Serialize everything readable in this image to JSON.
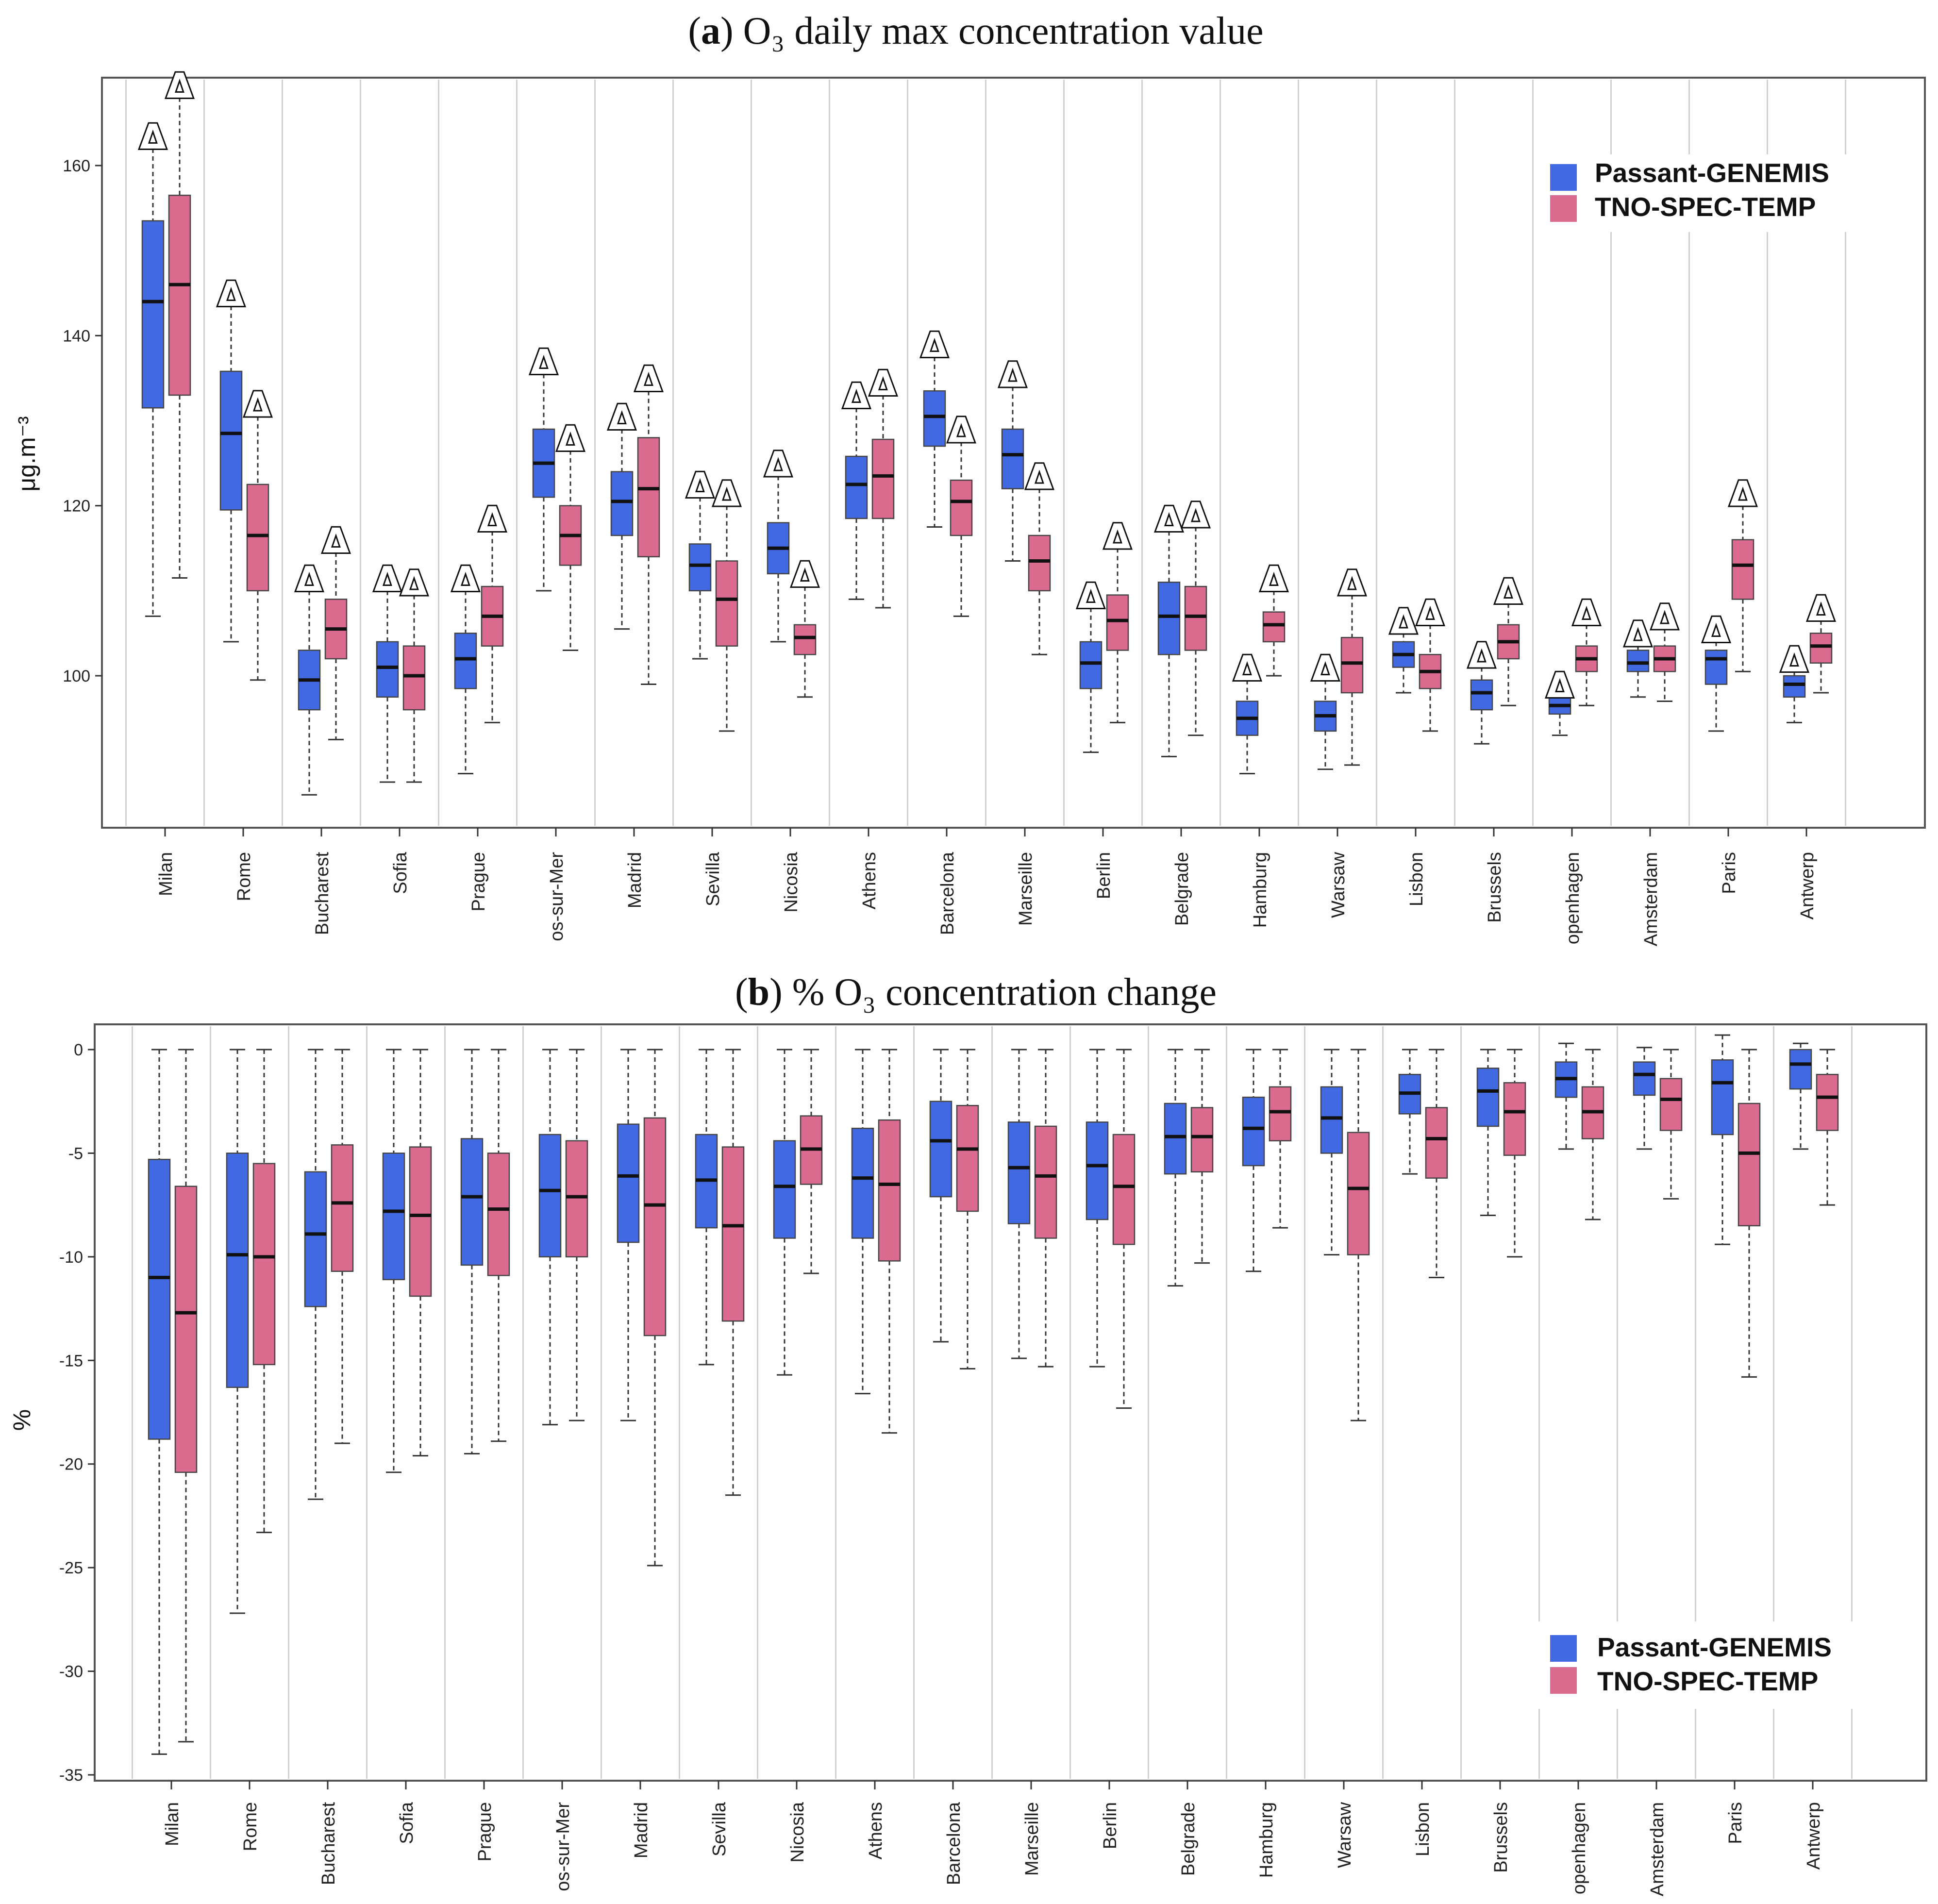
{
  "colors": {
    "blue": "#4169e1",
    "pink": "#db6a8f",
    "grid": "#d0d0d0"
  },
  "chart_data": [
    {
      "type": "boxplot",
      "panel": "a",
      "title_bold": "a",
      "title_rest": " O₃ daily max concentration value",
      "ylabel": "μg.m⁻³",
      "ylim": [
        80,
        170
      ],
      "yticks": [
        100,
        120,
        140,
        160
      ],
      "grid": true,
      "legend_position": "top-right",
      "legend": [
        "Passant-GENEMIS",
        "TNO-SPEC-TEMP"
      ],
      "marker_symbol": "Δ",
      "categories": [
        "Milan",
        "Rome",
        "Bucharest",
        "Sofia",
        "Prague",
        "os-sur-Mer",
        "Madrid",
        "Sevilla",
        "Nicosia",
        "Athens",
        "Barcelona",
        "Marseille",
        "Berlin",
        "Belgrade",
        "Hamburg",
        "Warsaw",
        "Lisbon",
        "Brussels",
        "openhagen",
        "Amsterdam",
        "Paris",
        "Antwerp"
      ],
      "series": [
        {
          "name": "Passant-GENEMIS",
          "boxes": [
            [
              107,
              131.5,
              144,
              153.5,
              162
            ],
            [
              104,
              119.5,
              128.5,
              135.8,
              143.5
            ],
            [
              86,
              96,
              99.5,
              103,
              110
            ],
            [
              87.5,
              97.5,
              101,
              104,
              110
            ],
            [
              88.5,
              98.5,
              102,
              105,
              110
            ],
            [
              110,
              121,
              125,
              129,
              135.5
            ],
            [
              105.5,
              116.5,
              120.5,
              124,
              129
            ],
            [
              102,
              110,
              113,
              115.5,
              121
            ],
            [
              104,
              112,
              115,
              118,
              123.5
            ],
            [
              109,
              118.5,
              122.5,
              125.8,
              131.5
            ],
            [
              117.5,
              127,
              130.5,
              133.5,
              137.5
            ],
            [
              113.5,
              122,
              126,
              129,
              134
            ],
            [
              91,
              98.5,
              101.5,
              104,
              108
            ],
            [
              90.5,
              102.5,
              107,
              111,
              117
            ],
            [
              88.5,
              93,
              95,
              97,
              99.5
            ],
            [
              89,
              93.5,
              95.3,
              97,
              99.5
            ],
            [
              98,
              101,
              102.5,
              104,
              105
            ],
            [
              92,
              96,
              98,
              99.5,
              101
            ],
            [
              93,
              95.5,
              96.5,
              97.5,
              97.5
            ],
            [
              97.5,
              100.5,
              101.5,
              103,
              103.5
            ],
            [
              93.5,
              99,
              102,
              103,
              104
            ],
            [
              94.5,
              97.5,
              99,
              100,
              100.5
            ]
          ]
        },
        {
          "name": "TNO-SPEC-TEMP",
          "boxes": [
            [
              111.5,
              133,
              146,
              156.5,
              168
            ],
            [
              99.5,
              110,
              116.5,
              122.5,
              130.5
            ],
            [
              92.5,
              102,
              105.5,
              109,
              114.5
            ],
            [
              87.5,
              96,
              100,
              103.5,
              109.5
            ],
            [
              94.5,
              103.5,
              107,
              110.5,
              117
            ],
            [
              103,
              113,
              116.5,
              120,
              126.5
            ],
            [
              99,
              114,
              122,
              128,
              133.5
            ],
            [
              93.5,
              103.5,
              109,
              113.5,
              120
            ],
            [
              97.5,
              102.5,
              104.5,
              106,
              110.5
            ],
            [
              108,
              118.5,
              123.5,
              127.8,
              133
            ],
            [
              107,
              116.5,
              120.5,
              123,
              127.5
            ],
            [
              102.5,
              110,
              113.5,
              116.5,
              122
            ],
            [
              94.5,
              103,
              106.5,
              109.5,
              115
            ],
            [
              93,
              103,
              107,
              110.5,
              117.5
            ],
            [
              100,
              104,
              106,
              107.5,
              110
            ],
            [
              89.5,
              98,
              101.5,
              104.5,
              109.5
            ],
            [
              93.5,
              98.5,
              100.5,
              102.5,
              106
            ],
            [
              96.5,
              102,
              104,
              106,
              108.5
            ],
            [
              96.5,
              100.5,
              102,
              103.5,
              106
            ],
            [
              97,
              100.5,
              102,
              103.5,
              105.5
            ],
            [
              100.5,
              109,
              113,
              116,
              120
            ],
            [
              98,
              101.5,
              103.5,
              105,
              106.5
            ]
          ]
        }
      ]
    },
    {
      "type": "boxplot",
      "panel": "b",
      "title_bold": "b",
      "title_rest": " % O₃ concentration change",
      "ylabel": "%",
      "ylim": [
        -35,
        2
      ],
      "yticks": [
        0,
        -5,
        -10,
        -15,
        -20,
        -25,
        -30,
        -35
      ],
      "grid": true,
      "legend_position": "bottom-right",
      "legend": [
        "Passant-GENEMIS",
        "TNO-SPEC-TEMP"
      ],
      "categories": [
        "Milan",
        "Rome",
        "Bucharest",
        "Sofia",
        "Prague",
        "os-sur-Mer",
        "Madrid",
        "Sevilla",
        "Nicosia",
        "Athens",
        "Barcelona",
        "Marseille",
        "Berlin",
        "Belgrade",
        "Hamburg",
        "Warsaw",
        "Lisbon",
        "Brussels",
        "openhagen",
        "Amsterdam",
        "Paris",
        "Antwerp"
      ],
      "series": [
        {
          "name": "Passant-GENEMIS",
          "boxes": [
            [
              -34,
              -18.8,
              -11,
              -5.3,
              0
            ],
            [
              -27.2,
              -16.3,
              -9.9,
              -5,
              0
            ],
            [
              -21.7,
              -12.4,
              -8.9,
              -5.9,
              0
            ],
            [
              -20.4,
              -11.1,
              -7.8,
              -5,
              0
            ],
            [
              -19.5,
              -10.4,
              -7.1,
              -4.3,
              0
            ],
            [
              -18.1,
              -10,
              -6.8,
              -4.1,
              0
            ],
            [
              -17.9,
              -9.3,
              -6.1,
              -3.6,
              0
            ],
            [
              -15.2,
              -8.6,
              -6.3,
              -4.1,
              0
            ],
            [
              -15.7,
              -9.1,
              -6.6,
              -4.4,
              0
            ],
            [
              -16.6,
              -9.1,
              -6.2,
              -3.8,
              0
            ],
            [
              -14.1,
              -7.1,
              -4.4,
              -2.5,
              0
            ],
            [
              -14.9,
              -8.4,
              -5.7,
              -3.5,
              0
            ],
            [
              -15.3,
              -8.2,
              -5.6,
              -3.5,
              0
            ],
            [
              -11.4,
              -6,
              -4.2,
              -2.6,
              0
            ],
            [
              -10.7,
              -5.6,
              -3.8,
              -2.3,
              0
            ],
            [
              -9.9,
              -5,
              -3.3,
              -1.8,
              0
            ],
            [
              -6,
              -3.1,
              -2.1,
              -1.2,
              0
            ],
            [
              -8,
              -3.7,
              -2,
              -0.9,
              0
            ],
            [
              -4.8,
              -2.3,
              -1.4,
              -0.6,
              0.3
            ],
            [
              -4.8,
              -2.2,
              -1.2,
              -0.6,
              0.1
            ],
            [
              -9.4,
              -4.1,
              -1.6,
              -0.5,
              0.7
            ],
            [
              -4.8,
              -1.9,
              -0.7,
              0,
              0.3
            ]
          ]
        },
        {
          "name": "TNO-SPEC-TEMP",
          "boxes": [
            [
              -33.4,
              -20.4,
              -12.7,
              -6.6,
              0
            ],
            [
              -23.3,
              -15.2,
              -10,
              -5.5,
              0
            ],
            [
              -19,
              -10.7,
              -7.4,
              -4.6,
              0
            ],
            [
              -19.6,
              -11.9,
              -8,
              -4.7,
              0
            ],
            [
              -18.9,
              -10.9,
              -7.7,
              -5,
              0
            ],
            [
              -17.9,
              -10,
              -7.1,
              -4.4,
              0
            ],
            [
              -24.9,
              -13.8,
              -7.5,
              -3.3,
              0
            ],
            [
              -21.5,
              -13.1,
              -8.5,
              -4.7,
              0
            ],
            [
              -10.8,
              -6.5,
              -4.8,
              -3.2,
              0
            ],
            [
              -18.5,
              -10.2,
              -6.5,
              -3.4,
              0
            ],
            [
              -15.4,
              -7.8,
              -4.8,
              -2.7,
              0
            ],
            [
              -15.3,
              -9.1,
              -6.1,
              -3.7,
              0
            ],
            [
              -17.3,
              -9.4,
              -6.6,
              -4.1,
              0
            ],
            [
              -10.3,
              -5.9,
              -4.2,
              -2.8,
              0
            ],
            [
              -8.6,
              -4.4,
              -3,
              -1.8,
              0
            ],
            [
              -17.9,
              -9.9,
              -6.7,
              -4,
              0
            ],
            [
              -11,
              -6.2,
              -4.3,
              -2.8,
              0
            ],
            [
              -10,
              -5.1,
              -3,
              -1.6,
              0
            ],
            [
              -8.2,
              -4.3,
              -3,
              -1.8,
              0
            ],
            [
              -7.2,
              -3.9,
              -2.4,
              -1.4,
              0
            ],
            [
              -15.8,
              -8.5,
              -5,
              -2.6,
              0
            ],
            [
              -7.5,
              -3.9,
              -2.3,
              -1.2,
              0
            ]
          ]
        }
      ]
    }
  ]
}
